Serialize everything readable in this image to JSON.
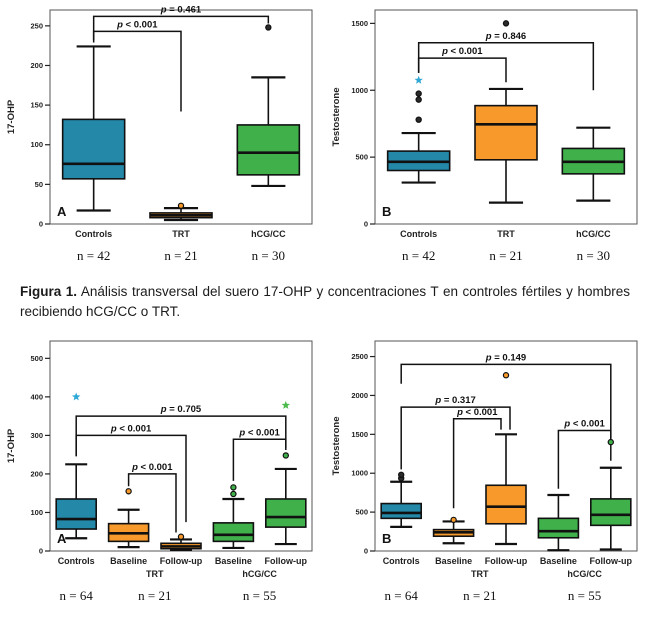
{
  "caption": {
    "label": "Figura 1.",
    "text": " Análisis transversal del suero 17-OHP y concentraciones T en controles fértiles y hombres recibiendo hCG/CC o TRT."
  },
  "colors": {
    "blue": "#2488A9",
    "orange": "#F89A2B",
    "green": "#3FB04A",
    "dark_dot": "#2b2b2b",
    "blue_star": "#2FA8D5",
    "green_star": "#4CBB4C"
  },
  "chart_data": [
    {
      "type": "box",
      "panel": "A",
      "ylabel": "17-OHP",
      "ylim": [
        0,
        270
      ],
      "yticks": [
        0,
        50,
        100,
        150,
        200,
        250
      ],
      "categories": [
        {
          "label": "Controls"
        },
        {
          "label": "TRT"
        },
        {
          "label": "hCG/CC"
        }
      ],
      "n_labels": [
        {
          "text": "n = 42",
          "span": [
            0,
            0
          ]
        },
        {
          "text": "n = 21",
          "span": [
            1,
            1
          ]
        },
        {
          "text": "n = 30",
          "span": [
            2,
            2
          ]
        }
      ],
      "boxes": [
        {
          "cat": "Controls",
          "color": "#2488A9",
          "low": 17,
          "q1": 57,
          "median": 76,
          "q3": 132,
          "high": 224,
          "outliers": []
        },
        {
          "cat": "TRT",
          "color": "#F89A2B",
          "low": 5,
          "q1": 8,
          "median": 11,
          "q3": 14,
          "high": 20,
          "outliers": [
            {
              "v": 23,
              "marker": "dot",
              "color": "#F89A2B"
            }
          ]
        },
        {
          "cat": "hCG/CC",
          "color": "#3FB04A",
          "low": 48,
          "q1": 62,
          "median": 90,
          "q3": 125,
          "high": 185,
          "outliers": [
            {
              "v": 248,
              "marker": "dot",
              "color": "#2b2b2b"
            }
          ]
        }
      ],
      "brackets": [
        {
          "from": 0,
          "to": 1,
          "y": 243,
          "leftDrop": 229,
          "rightDrop": 142,
          "label": "p < 0.001"
        },
        {
          "from": 0,
          "to": 2,
          "y": 262,
          "leftDrop": 232,
          "rightDrop": 253,
          "label": "p = 0.461"
        }
      ]
    },
    {
      "type": "box",
      "panel": "B",
      "ylabel": "Testosterone",
      "ylim": [
        0,
        1600
      ],
      "yticks": [
        0,
        500,
        1000,
        1500
      ],
      "categories": [
        {
          "label": "Controls"
        },
        {
          "label": "TRT"
        },
        {
          "label": "hCG/CC"
        }
      ],
      "n_labels": [
        {
          "text": "n = 42",
          "span": [
            0,
            0
          ]
        },
        {
          "text": "n = 21",
          "span": [
            1,
            1
          ]
        },
        {
          "text": "n = 30",
          "span": [
            2,
            2
          ]
        }
      ],
      "boxes": [
        {
          "cat": "Controls",
          "color": "#2488A9",
          "low": 310,
          "q1": 400,
          "median": 465,
          "q3": 545,
          "high": 680,
          "outliers": [
            {
              "v": 780,
              "marker": "dot",
              "color": "#2b2b2b"
            },
            {
              "v": 930,
              "marker": "dot",
              "color": "#2b2b2b"
            },
            {
              "v": 975,
              "marker": "dot",
              "color": "#2b2b2b"
            },
            {
              "v": 1075,
              "marker": "star",
              "color": "#2FA8D5"
            }
          ]
        },
        {
          "cat": "TRT",
          "color": "#F89A2B",
          "low": 160,
          "q1": 480,
          "median": 745,
          "q3": 885,
          "high": 1010,
          "outliers": [
            {
              "v": 1500,
              "marker": "dot",
              "color": "#2b2b2b"
            }
          ]
        },
        {
          "cat": "hCG/CC",
          "color": "#3FB04A",
          "low": 175,
          "q1": 375,
          "median": 465,
          "q3": 565,
          "high": 720,
          "outliers": []
        }
      ],
      "brackets": [
        {
          "from": 0,
          "to": 1,
          "y": 1240,
          "leftDrop": 1130,
          "rightDrop": 1060,
          "label": "p < 0.001"
        },
        {
          "from": 0,
          "to": 2,
          "y": 1355,
          "leftDrop": 1130,
          "rightDrop": 1000,
          "label": "p = 0.846"
        }
      ]
    },
    {
      "type": "box",
      "panel": "A",
      "ylabel": "17-OHP",
      "ylim": [
        0,
        545
      ],
      "yticks": [
        0,
        100,
        200,
        300,
        400,
        500
      ],
      "categories": [
        {
          "label": "Controls"
        },
        {
          "label": "Baseline"
        },
        {
          "label": "Follow-up"
        },
        {
          "label": "Baseline"
        },
        {
          "label": "Follow-up"
        }
      ],
      "group_labels": [
        {
          "text": "TRT",
          "span": [
            1,
            2
          ]
        },
        {
          "text": "hCG/CC",
          "span": [
            3,
            4
          ]
        }
      ],
      "n_labels": [
        {
          "text": "n = 64",
          "span": [
            0,
            0
          ]
        },
        {
          "text": "n = 21",
          "span": [
            1,
            2
          ]
        },
        {
          "text": "n = 55",
          "span": [
            3,
            4
          ]
        }
      ],
      "boxes": [
        {
          "cat": "Controls",
          "color": "#2488A9",
          "low": 33,
          "q1": 57,
          "median": 83,
          "q3": 135,
          "high": 225,
          "outliers": [
            {
              "v": 400,
              "marker": "star",
              "color": "#2FA8D5"
            }
          ]
        },
        {
          "cat": "TRT Baseline",
          "color": "#F89A2B",
          "low": 10,
          "q1": 25,
          "median": 46,
          "q3": 71,
          "high": 107,
          "outliers": [
            {
              "v": 155,
              "marker": "dot",
              "color": "#F89A2B"
            }
          ]
        },
        {
          "cat": "TRT Follow-up",
          "color": "#F89A2B",
          "low": 3,
          "q1": 6,
          "median": 12,
          "q3": 20,
          "high": 30,
          "outliers": [
            {
              "v": 37,
              "marker": "dot",
              "color": "#F89A2B"
            }
          ]
        },
        {
          "cat": "hCG/CC Baseline",
          "color": "#3FB04A",
          "low": 8,
          "q1": 25,
          "median": 42,
          "q3": 73,
          "high": 135,
          "outliers": [
            {
              "v": 148,
              "marker": "dot",
              "color": "#3FB04A"
            },
            {
              "v": 165,
              "marker": "dot",
              "color": "#3FB04A"
            }
          ]
        },
        {
          "cat": "hCG/CC Follow-up",
          "color": "#3FB04A",
          "low": 18,
          "q1": 62,
          "median": 88,
          "q3": 135,
          "high": 213,
          "outliers": [
            {
              "v": 248,
              "marker": "dot",
              "color": "#3FB04A"
            },
            {
              "v": 378,
              "marker": "star",
              "color": "#4CBB4C"
            }
          ]
        }
      ],
      "brackets": [
        {
          "from": 1,
          "to": 2,
          "y": 200,
          "leftDrop": 168,
          "rightDrop": 48,
          "label": "p < 0.001",
          "xoff2": -5
        },
        {
          "from": 0,
          "to": 2,
          "y": 300,
          "leftDrop": 246,
          "rightDrop": 75,
          "label": "p < 0.001",
          "xoff2": 5
        },
        {
          "from": 0,
          "to": 4,
          "y": 350,
          "leftDrop": 246,
          "rightDrop": 268,
          "label": "p = 0.705"
        },
        {
          "from": 3,
          "to": 4,
          "y": 290,
          "leftDrop": 182,
          "rightDrop": 262,
          "label": "p < 0.001"
        }
      ]
    },
    {
      "type": "box",
      "panel": "B",
      "ylabel": "Testosterone",
      "ylim": [
        0,
        2700
      ],
      "yticks": [
        0,
        500,
        1000,
        1500,
        2000,
        2500
      ],
      "categories": [
        {
          "label": "Controls"
        },
        {
          "label": "Baseline"
        },
        {
          "label": "Follow-up"
        },
        {
          "label": "Baseline"
        },
        {
          "label": "Follow-up"
        }
      ],
      "group_labels": [
        {
          "text": "TRT",
          "span": [
            1,
            2
          ]
        },
        {
          "text": "hCG/CC",
          "span": [
            3,
            4
          ]
        }
      ],
      "n_labels": [
        {
          "text": "n = 64",
          "span": [
            0,
            0
          ]
        },
        {
          "text": "n = 21",
          "span": [
            1,
            2
          ]
        },
        {
          "text": "n = 55",
          "span": [
            3,
            4
          ]
        }
      ],
      "boxes": [
        {
          "cat": "Controls",
          "color": "#2488A9",
          "low": 310,
          "q1": 420,
          "median": 490,
          "q3": 610,
          "high": 890,
          "outliers": [
            {
              "v": 935,
              "marker": "dot",
              "color": "#2b2b2b"
            },
            {
              "v": 980,
              "marker": "dot",
              "color": "#2b2b2b"
            }
          ]
        },
        {
          "cat": "TRT Baseline",
          "color": "#F89A2B",
          "low": 100,
          "q1": 190,
          "median": 240,
          "q3": 275,
          "high": 380,
          "outliers": [
            {
              "v": 400,
              "marker": "dot",
              "color": "#F89A2B"
            }
          ]
        },
        {
          "cat": "TRT Follow-up",
          "color": "#F89A2B",
          "low": 90,
          "q1": 350,
          "median": 570,
          "q3": 845,
          "high": 1500,
          "outliers": [
            {
              "v": 2260,
              "marker": "dot",
              "color": "#F89A2B"
            }
          ]
        },
        {
          "cat": "hCG/CC Baseline",
          "color": "#3FB04A",
          "low": 10,
          "q1": 170,
          "median": 255,
          "q3": 420,
          "high": 720,
          "outliers": []
        },
        {
          "cat": "hCG/CC Follow-up",
          "color": "#3FB04A",
          "low": 20,
          "q1": 330,
          "median": 465,
          "q3": 670,
          "high": 1070,
          "outliers": [
            {
              "v": 1400,
              "marker": "dot",
              "color": "#3FB04A"
            }
          ]
        }
      ],
      "brackets": [
        {
          "from": 1,
          "to": 2,
          "y": 1700,
          "leftDrop": 550,
          "rightDrop": 1560,
          "label": "p < 0.001",
          "xoff2": -5
        },
        {
          "from": 0,
          "to": 2,
          "y": 1850,
          "leftDrop": 1050,
          "rightDrop": 1560,
          "label": "p = 0.317",
          "xoff2": 4
        },
        {
          "from": 0,
          "to": 4,
          "y": 2400,
          "leftDrop": 2150,
          "rightDrop": 1160,
          "label": "p = 0.149"
        },
        {
          "from": 3,
          "to": 4,
          "y": 1550,
          "leftDrop": 800,
          "rightDrop": 1450,
          "label": "p < 0.001"
        }
      ]
    }
  ]
}
